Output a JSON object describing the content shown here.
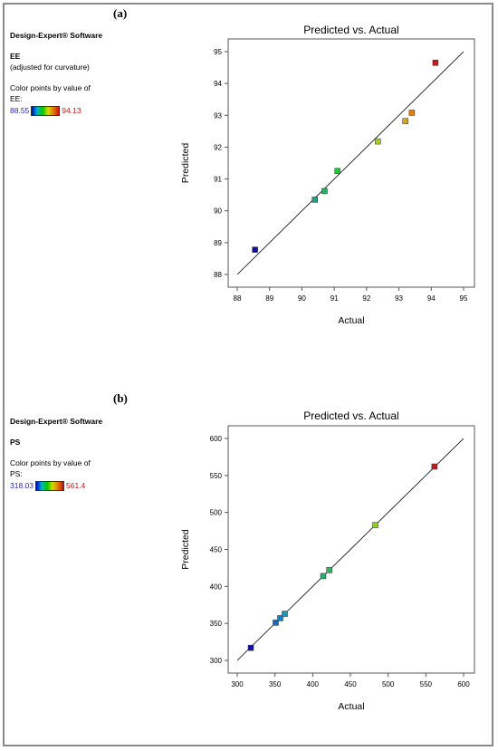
{
  "panels": [
    {
      "label": "(a)",
      "software": "Design-Expert® Software",
      "response": "EE",
      "note": "(adjusted for curvature)",
      "color_caption_1": "Color points by value of",
      "color_caption_2": "EE:",
      "scale_min": "88.55",
      "scale_max": "94.13"
    },
    {
      "label": "(b)",
      "software": "Design-Expert® Software",
      "response": "PS",
      "note": "",
      "color_caption_1": "Color points by value of",
      "color_caption_2": "PS:",
      "scale_min": "318.03",
      "scale_max": "561.4"
    }
  ],
  "chart_data": [
    {
      "type": "scatter",
      "title": "Predicted vs. Actual",
      "xlabel": "Actual",
      "ylabel": "Predicted",
      "xlim": [
        88,
        95
      ],
      "ylim": [
        88,
        95
      ],
      "xticks": [
        88,
        89,
        90,
        91,
        92,
        93,
        94,
        95
      ],
      "yticks": [
        88,
        89,
        90,
        91,
        92,
        93,
        94,
        95
      ],
      "reference_line": [
        [
          88,
          88
        ],
        [
          95,
          95
        ]
      ],
      "points": [
        {
          "x": 88.55,
          "y": 88.78,
          "color": "#1010b0"
        },
        {
          "x": 90.4,
          "y": 90.35,
          "color": "#20a080"
        },
        {
          "x": 90.7,
          "y": 90.62,
          "color": "#28b060"
        },
        {
          "x": 91.1,
          "y": 91.25,
          "color": "#30c040"
        },
        {
          "x": 92.35,
          "y": 92.18,
          "color": "#a0d020"
        },
        {
          "x": 93.2,
          "y": 92.82,
          "color": "#e0a020"
        },
        {
          "x": 93.4,
          "y": 93.08,
          "color": "#e08018"
        },
        {
          "x": 94.13,
          "y": 94.65,
          "color": "#c81818"
        }
      ]
    },
    {
      "type": "scatter",
      "title": "Predicted vs. Actual",
      "xlabel": "Actual",
      "ylabel": "Predicted",
      "xlim": [
        300,
        600
      ],
      "ylim": [
        300,
        600
      ],
      "xticks": [
        300,
        350,
        400,
        450,
        500,
        550,
        600
      ],
      "yticks": [
        300,
        350,
        400,
        450,
        500,
        550,
        600
      ],
      "reference_line": [
        [
          300,
          300
        ],
        [
          600,
          600
        ]
      ],
      "points": [
        {
          "x": 318.03,
          "y": 317,
          "color": "#1010b0"
        },
        {
          "x": 351,
          "y": 351,
          "color": "#1868c0"
        },
        {
          "x": 357,
          "y": 357,
          "color": "#1880c0"
        },
        {
          "x": 363,
          "y": 363,
          "color": "#1898b8"
        },
        {
          "x": 414,
          "y": 414,
          "color": "#20b070"
        },
        {
          "x": 422,
          "y": 422,
          "color": "#28b858"
        },
        {
          "x": 483,
          "y": 483,
          "color": "#88d028"
        },
        {
          "x": 561.4,
          "y": 562,
          "color": "#c81818"
        }
      ]
    }
  ]
}
